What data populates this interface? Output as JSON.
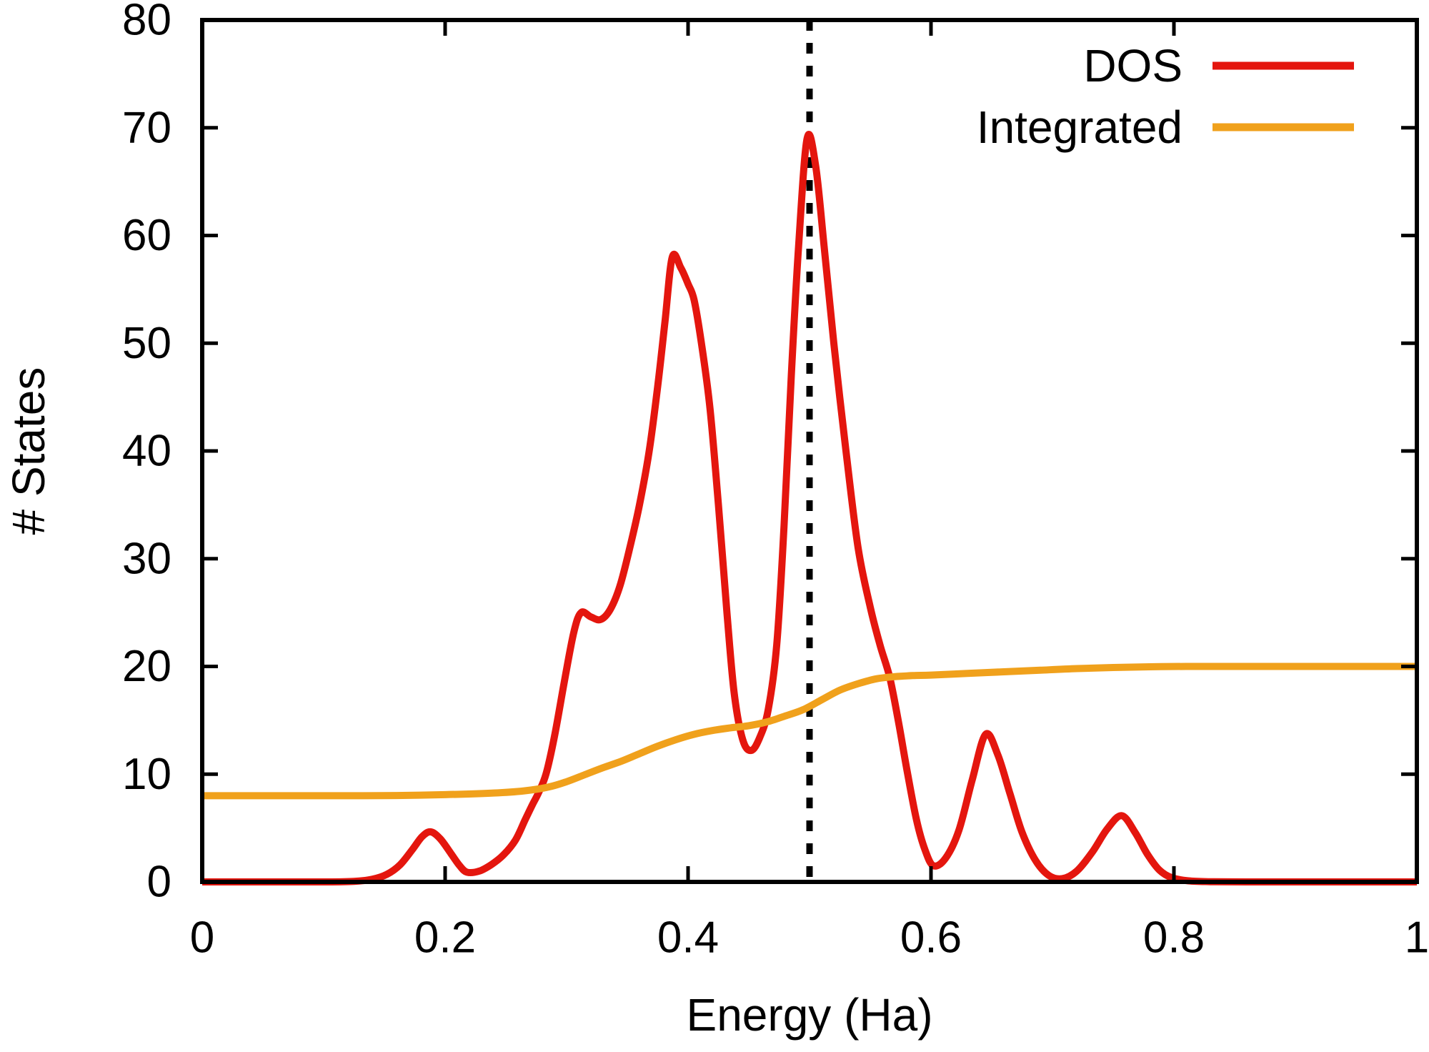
{
  "figure": {
    "background": "#ffffff",
    "frame_color": "#000000",
    "y_axis": {
      "title": "# States",
      "min": 0,
      "max": 80,
      "ticks": [
        0,
        10,
        20,
        30,
        40,
        50,
        60,
        70,
        80
      ],
      "tick_labels": [
        "0",
        "10",
        "20",
        "30",
        "40",
        "50",
        "60",
        "70",
        "80"
      ]
    },
    "x_axis": {
      "title": "Energy (Ha)",
      "min": 0,
      "max": 1,
      "ticks": [
        0,
        0.2,
        0.4,
        0.6,
        0.8,
        1
      ],
      "tick_labels": [
        "0",
        "0.2",
        "0.4",
        "0.6",
        "0.8",
        "1"
      ]
    },
    "legend": {
      "position": "top-right",
      "entries": [
        {
          "label": "DOS",
          "color": "#e4160e"
        },
        {
          "label": "Integrated",
          "color": "#f0a11c"
        }
      ]
    }
  },
  "chart_data": {
    "type": "line",
    "title": "",
    "xlabel": "Energy (Ha)",
    "ylabel": "# States",
    "xlim": [
      0,
      1
    ],
    "ylim": [
      0,
      80
    ],
    "grid": false,
    "legend_position": "top-right",
    "annotations": [
      {
        "type": "vline",
        "x": 0.5,
        "color": "#000000",
        "linestyle": "dashed"
      }
    ],
    "series": [
      {
        "name": "DOS",
        "color": "#e4160e",
        "points": [
          [
            0.0,
            0
          ],
          [
            0.06,
            0
          ],
          [
            0.1,
            0
          ],
          [
            0.125,
            0.05
          ],
          [
            0.14,
            0.25
          ],
          [
            0.152,
            0.7
          ],
          [
            0.163,
            1.6
          ],
          [
            0.173,
            3.0
          ],
          [
            0.181,
            4.2
          ],
          [
            0.188,
            4.65
          ],
          [
            0.196,
            4.0
          ],
          [
            0.205,
            2.6
          ],
          [
            0.212,
            1.5
          ],
          [
            0.218,
            0.9
          ],
          [
            0.228,
            1.0
          ],
          [
            0.238,
            1.6
          ],
          [
            0.248,
            2.5
          ],
          [
            0.258,
            3.9
          ],
          [
            0.266,
            5.8
          ],
          [
            0.272,
            7.2
          ],
          [
            0.277,
            8.3
          ],
          [
            0.283,
            10.0
          ],
          [
            0.29,
            13.5
          ],
          [
            0.298,
            18.5
          ],
          [
            0.306,
            23.2
          ],
          [
            0.312,
            25.0
          ],
          [
            0.32,
            24.6
          ],
          [
            0.328,
            24.35
          ],
          [
            0.336,
            25.3
          ],
          [
            0.344,
            27.5
          ],
          [
            0.352,
            31
          ],
          [
            0.36,
            35
          ],
          [
            0.368,
            40
          ],
          [
            0.375,
            46
          ],
          [
            0.381,
            52
          ],
          [
            0.387,
            58
          ],
          [
            0.394,
            57
          ],
          [
            0.4,
            55.5
          ],
          [
            0.405,
            54
          ],
          [
            0.411,
            50
          ],
          [
            0.418,
            44
          ],
          [
            0.425,
            35
          ],
          [
            0.432,
            25
          ],
          [
            0.438,
            17.5
          ],
          [
            0.445,
            13.2
          ],
          [
            0.452,
            12.2
          ],
          [
            0.459,
            13.4
          ],
          [
            0.466,
            16
          ],
          [
            0.473,
            22
          ],
          [
            0.479,
            33
          ],
          [
            0.485,
            47
          ],
          [
            0.491,
            59
          ],
          [
            0.498,
            69
          ],
          [
            0.505,
            66.5
          ],
          [
            0.512,
            59
          ],
          [
            0.52,
            50
          ],
          [
            0.53,
            40
          ],
          [
            0.54,
            31
          ],
          [
            0.55,
            25.5
          ],
          [
            0.558,
            22
          ],
          [
            0.566,
            19
          ],
          [
            0.573,
            15
          ],
          [
            0.58,
            10.5
          ],
          [
            0.588,
            5.8
          ],
          [
            0.595,
            3.0
          ],
          [
            0.602,
            1.5
          ],
          [
            0.612,
            2.2
          ],
          [
            0.623,
            4.8
          ],
          [
            0.634,
            9.5
          ],
          [
            0.645,
            13.7
          ],
          [
            0.655,
            11.8
          ],
          [
            0.665,
            8.2
          ],
          [
            0.675,
            4.6
          ],
          [
            0.686,
            2.0
          ],
          [
            0.697,
            0.6
          ],
          [
            0.708,
            0.3
          ],
          [
            0.72,
            1.0
          ],
          [
            0.733,
            2.8
          ],
          [
            0.745,
            4.9
          ],
          [
            0.757,
            6.15
          ],
          [
            0.768,
            4.6
          ],
          [
            0.778,
            2.6
          ],
          [
            0.788,
            1.1
          ],
          [
            0.798,
            0.4
          ],
          [
            0.812,
            0.1
          ],
          [
            0.83,
            0.02
          ],
          [
            0.86,
            0
          ],
          [
            0.92,
            0
          ],
          [
            1.0,
            0
          ]
        ]
      },
      {
        "name": "Integrated",
        "color": "#f0a11c",
        "points": [
          [
            0.0,
            8
          ],
          [
            0.06,
            8
          ],
          [
            0.12,
            8
          ],
          [
            0.16,
            8.02
          ],
          [
            0.2,
            8.1
          ],
          [
            0.24,
            8.25
          ],
          [
            0.265,
            8.45
          ],
          [
            0.285,
            8.8
          ],
          [
            0.3,
            9.3
          ],
          [
            0.315,
            9.95
          ],
          [
            0.33,
            10.6
          ],
          [
            0.345,
            11.2
          ],
          [
            0.36,
            11.9
          ],
          [
            0.375,
            12.6
          ],
          [
            0.39,
            13.2
          ],
          [
            0.405,
            13.7
          ],
          [
            0.42,
            14.05
          ],
          [
            0.435,
            14.3
          ],
          [
            0.45,
            14.5
          ],
          [
            0.465,
            14.85
          ],
          [
            0.48,
            15.4
          ],
          [
            0.495,
            16.0
          ],
          [
            0.51,
            16.9
          ],
          [
            0.525,
            17.8
          ],
          [
            0.54,
            18.4
          ],
          [
            0.555,
            18.85
          ],
          [
            0.57,
            19.05
          ],
          [
            0.585,
            19.15
          ],
          [
            0.6,
            19.2
          ],
          [
            0.63,
            19.35
          ],
          [
            0.66,
            19.5
          ],
          [
            0.69,
            19.65
          ],
          [
            0.72,
            19.8
          ],
          [
            0.75,
            19.9
          ],
          [
            0.78,
            19.97
          ],
          [
            0.81,
            20
          ],
          [
            0.86,
            20
          ],
          [
            0.92,
            20
          ],
          [
            1.0,
            20
          ]
        ]
      }
    ]
  }
}
